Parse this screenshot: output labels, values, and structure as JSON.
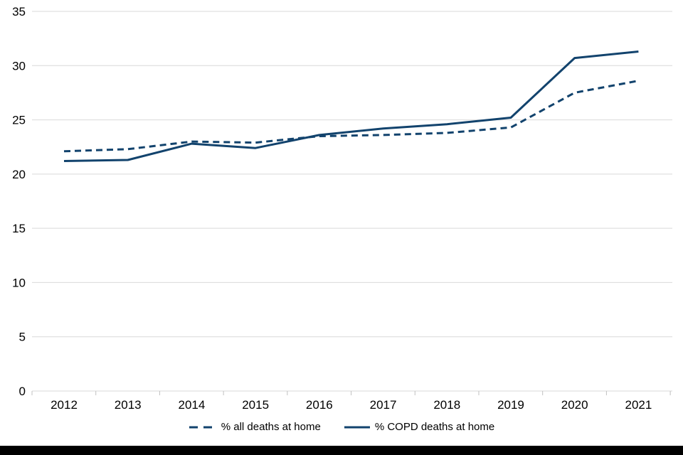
{
  "chart_data": {
    "type": "line",
    "x": [
      2012,
      2013,
      2014,
      2015,
      2016,
      2017,
      2018,
      2019,
      2020,
      2021
    ],
    "series": [
      {
        "name": "% all deaths at home",
        "style": "dashed",
        "values": [
          22.1,
          22.3,
          23.0,
          22.9,
          23.5,
          23.6,
          23.8,
          24.3,
          27.5,
          28.6
        ]
      },
      {
        "name": "% COPD deaths at home",
        "style": "solid",
        "values": [
          21.2,
          21.3,
          22.8,
          22.4,
          23.6,
          24.2,
          24.6,
          25.2,
          30.7,
          31.3
        ]
      }
    ],
    "title": "",
    "xlabel": "",
    "ylabel": "",
    "ylim": [
      0,
      35
    ],
    "yticks": [
      0,
      5,
      10,
      15,
      20,
      25,
      30,
      35
    ],
    "grid": "horizontal",
    "legend_position": "bottom-center",
    "colors": {
      "line": "#12436D",
      "gridline": "#d9d9d9",
      "tick": "#c0c0c0",
      "text": "#000000",
      "background": "#ffffff",
      "bottom_bar": "#000000"
    }
  }
}
